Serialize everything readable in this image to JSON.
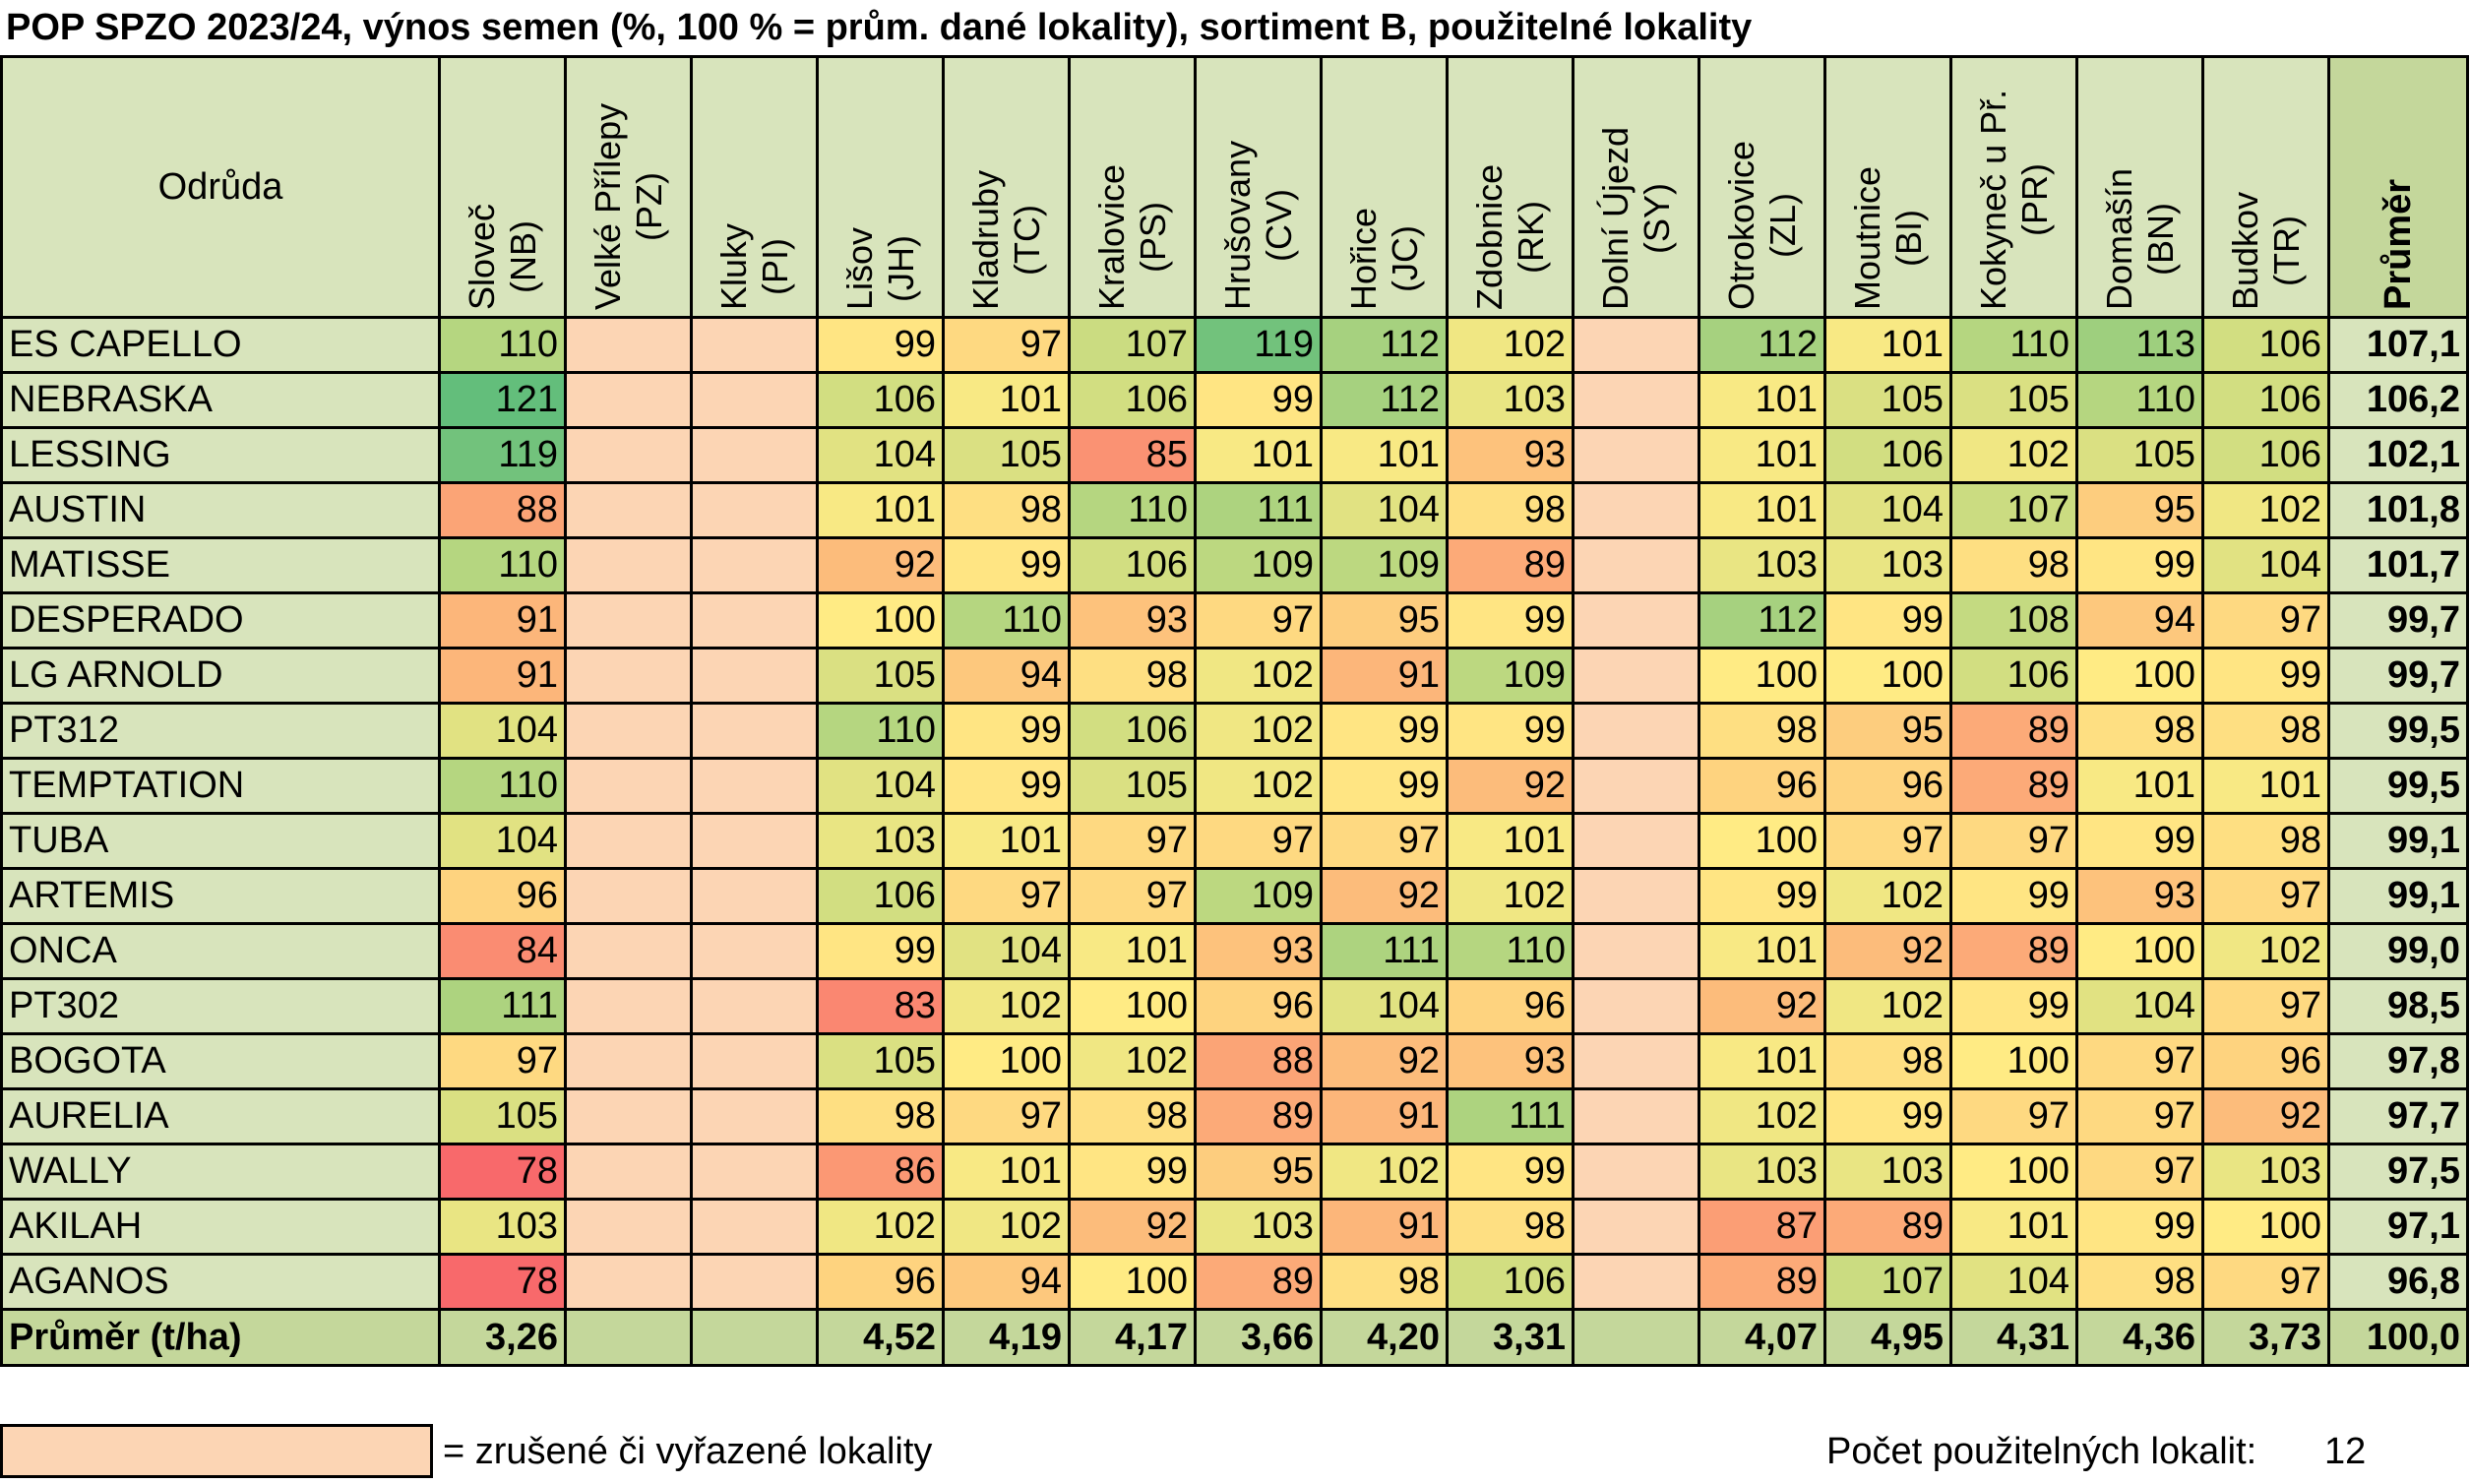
{
  "title": "POP SPZO 2023/24, výnos semen (%, 100 % = prům. dané lokality), sortiment B, použitelné lokality",
  "chart_data": {
    "type": "table",
    "variety_header": "Odrůda",
    "average_header": "Průměr",
    "locations": [
      {
        "name": "Sloveč",
        "code": "(NB)",
        "cancelled": false
      },
      {
        "name": "Velké Přílepy",
        "code": "(PZ)",
        "cancelled": true
      },
      {
        "name": "Kluky",
        "code": "(PI)",
        "cancelled": true
      },
      {
        "name": "Lišov",
        "code": "(JH)",
        "cancelled": false
      },
      {
        "name": "Kladruby",
        "code": "(TC)",
        "cancelled": false
      },
      {
        "name": "Kralovice",
        "code": "(PS)",
        "cancelled": false
      },
      {
        "name": "Hrušovany",
        "code": "(CV)",
        "cancelled": false
      },
      {
        "name": "Hořice",
        "code": "(JC)",
        "cancelled": false
      },
      {
        "name": "Zdobnice",
        "code": "(RK)",
        "cancelled": false
      },
      {
        "name": "Dolní Újezd",
        "code": "(SY)",
        "cancelled": true
      },
      {
        "name": "Otrokovice",
        "code": "(ZL)",
        "cancelled": false
      },
      {
        "name": "Moutnice",
        "code": "(BI)",
        "cancelled": false
      },
      {
        "name": "Kokyneč u Př.",
        "code": "(PR)",
        "cancelled": false
      },
      {
        "name": "Domašín",
        "code": "(BN)",
        "cancelled": false
      },
      {
        "name": "Budkov",
        "code": "(TR)",
        "cancelled": false
      }
    ],
    "rows": [
      {
        "variety": "ES CAPELLO",
        "values": [
          110,
          null,
          null,
          99,
          97,
          107,
          119,
          112,
          102,
          null,
          112,
          101,
          110,
          113,
          106
        ],
        "avg": "107,1"
      },
      {
        "variety": "NEBRASKA",
        "values": [
          121,
          null,
          null,
          106,
          101,
          106,
          99,
          112,
          103,
          null,
          101,
          105,
          105,
          110,
          106
        ],
        "avg": "106,2"
      },
      {
        "variety": "LESSING",
        "values": [
          119,
          null,
          null,
          104,
          105,
          85,
          101,
          101,
          93,
          null,
          101,
          106,
          102,
          105,
          106
        ],
        "avg": "102,1"
      },
      {
        "variety": "AUSTIN",
        "values": [
          88,
          null,
          null,
          101,
          98,
          110,
          111,
          104,
          98,
          null,
          101,
          104,
          107,
          95,
          102
        ],
        "avg": "101,8"
      },
      {
        "variety": "MATISSE",
        "values": [
          110,
          null,
          null,
          92,
          99,
          106,
          109,
          109,
          89,
          null,
          103,
          103,
          98,
          99,
          104
        ],
        "avg": "101,7"
      },
      {
        "variety": "DESPERADO",
        "values": [
          91,
          null,
          null,
          100,
          110,
          93,
          97,
          95,
          99,
          null,
          112,
          99,
          108,
          94,
          97
        ],
        "avg": "99,7"
      },
      {
        "variety": "LG ARNOLD",
        "values": [
          91,
          null,
          null,
          105,
          94,
          98,
          102,
          91,
          109,
          null,
          100,
          100,
          106,
          100,
          99
        ],
        "avg": "99,7"
      },
      {
        "variety": "PT312",
        "values": [
          104,
          null,
          null,
          110,
          99,
          106,
          102,
          99,
          99,
          null,
          98,
          95,
          89,
          98,
          98
        ],
        "avg": "99,5"
      },
      {
        "variety": "TEMPTATION",
        "values": [
          110,
          null,
          null,
          104,
          99,
          105,
          102,
          99,
          92,
          null,
          96,
          96,
          89,
          101,
          101
        ],
        "avg": "99,5"
      },
      {
        "variety": "TUBA",
        "values": [
          104,
          null,
          null,
          103,
          101,
          97,
          97,
          97,
          101,
          null,
          100,
          97,
          97,
          99,
          98
        ],
        "avg": "99,1"
      },
      {
        "variety": "ARTEMIS",
        "values": [
          96,
          null,
          null,
          106,
          97,
          97,
          109,
          92,
          102,
          null,
          99,
          102,
          99,
          93,
          97
        ],
        "avg": "99,1"
      },
      {
        "variety": "ONCA",
        "values": [
          84,
          null,
          null,
          99,
          104,
          101,
          93,
          111,
          110,
          null,
          101,
          92,
          89,
          100,
          102
        ],
        "avg": "99,0"
      },
      {
        "variety": "PT302",
        "values": [
          111,
          null,
          null,
          83,
          102,
          100,
          96,
          104,
          96,
          null,
          92,
          102,
          99,
          104,
          97
        ],
        "avg": "98,5"
      },
      {
        "variety": "BOGOTA",
        "values": [
          97,
          null,
          null,
          105,
          100,
          102,
          88,
          92,
          93,
          null,
          101,
          98,
          100,
          97,
          96
        ],
        "avg": "97,8"
      },
      {
        "variety": "AURELIA",
        "values": [
          105,
          null,
          null,
          98,
          97,
          98,
          89,
          91,
          111,
          null,
          102,
          99,
          97,
          97,
          92
        ],
        "avg": "97,7"
      },
      {
        "variety": "WALLY",
        "values": [
          78,
          null,
          null,
          86,
          101,
          99,
          95,
          102,
          99,
          null,
          103,
          103,
          100,
          97,
          103
        ],
        "avg": "97,5"
      },
      {
        "variety": "AKILAH",
        "values": [
          103,
          null,
          null,
          102,
          102,
          92,
          103,
          91,
          98,
          null,
          87,
          89,
          101,
          99,
          100
        ],
        "avg": "97,1"
      },
      {
        "variety": "AGANOS",
        "values": [
          78,
          null,
          null,
          96,
          94,
          100,
          89,
          98,
          106,
          null,
          89,
          107,
          104,
          98,
          97
        ],
        "avg": "96,8"
      }
    ],
    "footer": {
      "label": "Průměr (t/ha)",
      "values": [
        "3,26",
        "",
        "",
        "4,52",
        "4,19",
        "4,17",
        "3,66",
        "4,20",
        "3,31",
        "",
        "4,07",
        "4,95",
        "4,31",
        "4,36",
        "3,73"
      ],
      "avg": "100,0"
    },
    "color_scale": {
      "min": 78,
      "mid": 100,
      "max": 121,
      "low_color": "#f8696b",
      "mid_color": "#ffeb84",
      "high_color": "#63be7b"
    },
    "cancelled_color": "#fcd5b4"
  },
  "legend": {
    "text": "= zrušené či vyřazené lokality"
  },
  "count": {
    "label": "Počet použitelných lokalit:",
    "value": "12"
  }
}
